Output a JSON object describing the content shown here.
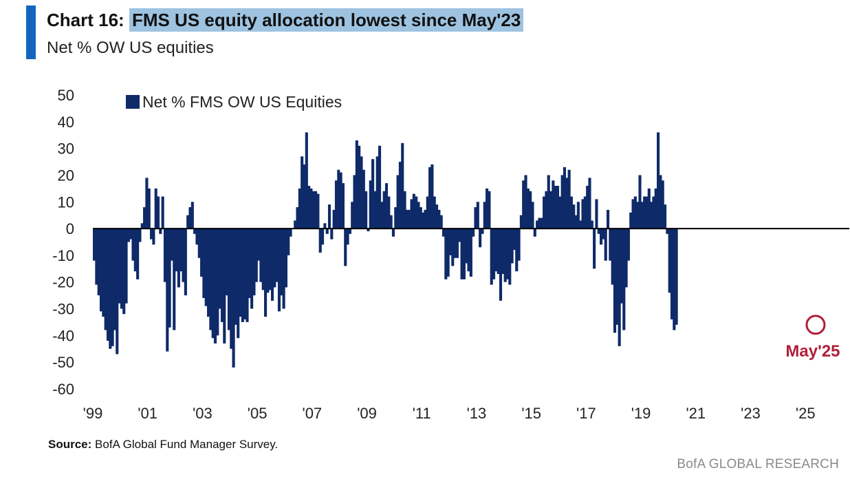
{
  "header": {
    "chart_number": "Chart 16:",
    "title_highlight": "FMS US equity allocation lowest since May'23",
    "subtitle": "Net % OW US equities"
  },
  "footer": {
    "source_label": "Source:",
    "source_text": "BofA Global Fund Manager Survey.",
    "brand": "BofA GLOBAL RESEARCH"
  },
  "colors": {
    "bars": "#0f2a68",
    "zero_line": "#000000",
    "annotation": "#b01e3a",
    "accent": "#1565c0"
  },
  "chart_data": {
    "type": "bar",
    "title": "FMS US equity allocation lowest since May'23",
    "subtitle": "Net % OW US equities",
    "xlabel": "",
    "ylabel": "",
    "ylim": [
      -60,
      50
    ],
    "yticks": [
      50,
      40,
      30,
      20,
      10,
      0,
      -10,
      -20,
      -30,
      -40,
      -50,
      -60
    ],
    "xlim": [
      1999.0,
      2026.6
    ],
    "xticks": [
      {
        "label": "'99",
        "x": 1999
      },
      {
        "label": "'01",
        "x": 2001
      },
      {
        "label": "'03",
        "x": 2003
      },
      {
        "label": "'05",
        "x": 2005
      },
      {
        "label": "'07",
        "x": 2007
      },
      {
        "label": "'09",
        "x": 2009
      },
      {
        "label": "'11",
        "x": 2011
      },
      {
        "label": "'13",
        "x": 2013
      },
      {
        "label": "'15",
        "x": 2015
      },
      {
        "label": "'17",
        "x": 2017
      },
      {
        "label": "'19",
        "x": 2019
      },
      {
        "label": "'21",
        "x": 2021
      },
      {
        "label": "'23",
        "x": 2023
      },
      {
        "label": "'25",
        "x": 2025
      }
    ],
    "legend": "Net % FMS OW US Equities",
    "legend_position": "top-left",
    "annotation": {
      "label": "May'25",
      "x": 2025.37,
      "y": -36
    },
    "series": [
      {
        "name": "Net % FMS OW US Equities",
        "start": 1999.0,
        "step": 0.0833,
        "values": [
          -12,
          -21,
          -25,
          -31,
          -33,
          -38,
          -42,
          -45,
          -44,
          -38,
          -47,
          -28,
          -30,
          -32,
          -28,
          -5,
          -4,
          -12,
          -16,
          -19,
          -5,
          2,
          8,
          19,
          15,
          -4,
          -6,
          15,
          12,
          -2,
          12,
          -20,
          -46,
          -37,
          -12,
          -38,
          -16,
          -22,
          -16,
          -20,
          -25,
          5,
          8,
          10,
          -2,
          -6,
          -11,
          -18,
          -26,
          -29,
          -33,
          -38,
          -41,
          -43,
          -40,
          -30,
          -35,
          -43,
          -25,
          -38,
          -45,
          -52,
          -36,
          -41,
          -33,
          -35,
          -34,
          -35,
          -26,
          -30,
          -25,
          -20,
          -12,
          -20,
          -23,
          -33,
          -24,
          -23,
          -27,
          -22,
          -20,
          -31,
          -25,
          -30,
          -22,
          -10,
          -3,
          0,
          3,
          8,
          15,
          27,
          24,
          36,
          16,
          15,
          14,
          14,
          13,
          -9,
          -6,
          2,
          -2,
          9,
          -4,
          7,
          18,
          22,
          21,
          17,
          -14,
          -6,
          -2,
          10,
          20,
          33,
          31,
          27,
          22,
          14,
          -1,
          18,
          26,
          14,
          27,
          31,
          10,
          14,
          17,
          12,
          5,
          -3,
          8,
          20,
          25,
          32,
          14,
          7,
          7,
          11,
          13,
          12,
          10,
          8,
          6,
          7,
          12,
          23,
          24,
          12,
          9,
          7,
          5,
          -3,
          -19,
          -18,
          -10,
          -14,
          -11,
          -11,
          -5,
          -19,
          -19,
          -13,
          -16,
          -18,
          -3,
          8,
          10,
          -7,
          -2,
          10,
          15,
          14,
          -21,
          -19,
          -16,
          -17,
          -27,
          -17,
          -20,
          -19,
          -21,
          -13,
          -8,
          -16,
          -12,
          5,
          18,
          20,
          15,
          14,
          10,
          -3,
          3,
          4,
          4,
          12,
          14,
          20,
          14,
          18,
          16,
          16,
          12,
          20,
          23,
          19,
          22,
          12,
          9,
          5,
          10,
          3,
          11,
          12,
          16,
          19,
          3,
          -15,
          11,
          -2,
          -6,
          -4,
          -12,
          7,
          -12,
          -21,
          -39,
          -36,
          -44,
          -28,
          -38,
          -22,
          -12,
          6,
          11,
          12,
          10,
          20,
          10,
          12,
          12,
          15,
          10,
          12,
          15,
          36,
          20,
          18,
          9,
          -2,
          -24,
          -34,
          -38,
          -36
        ]
      }
    ]
  }
}
